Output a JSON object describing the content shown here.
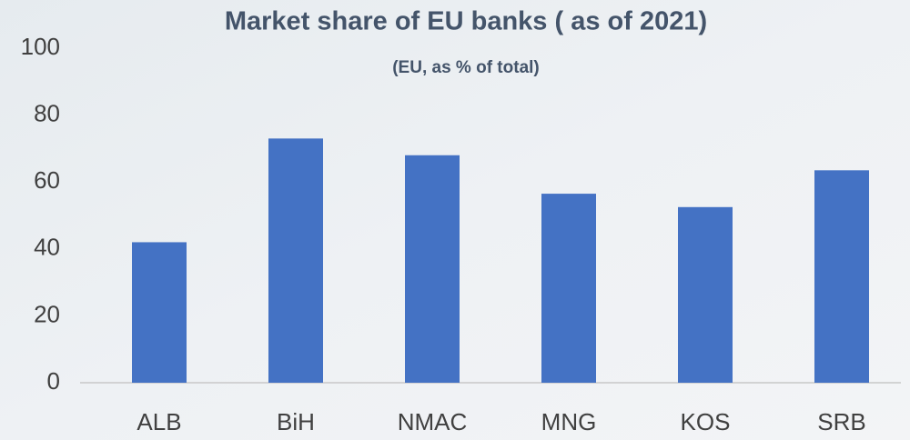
{
  "chart_data": {
    "type": "bar",
    "title": "Market share of EU banks ( as of 2021)",
    "subtitle": "(EU, as % of total)",
    "categories": [
      "ALB",
      "BiH",
      "NMAC",
      "MNG",
      "KOS",
      "SRB"
    ],
    "values": [
      42,
      73,
      68,
      56.5,
      52.5,
      63.5
    ],
    "color": "#4472c4",
    "ylim": [
      0,
      100
    ],
    "yticks": [
      0,
      20,
      40,
      60,
      80,
      100
    ],
    "grid": false
  }
}
